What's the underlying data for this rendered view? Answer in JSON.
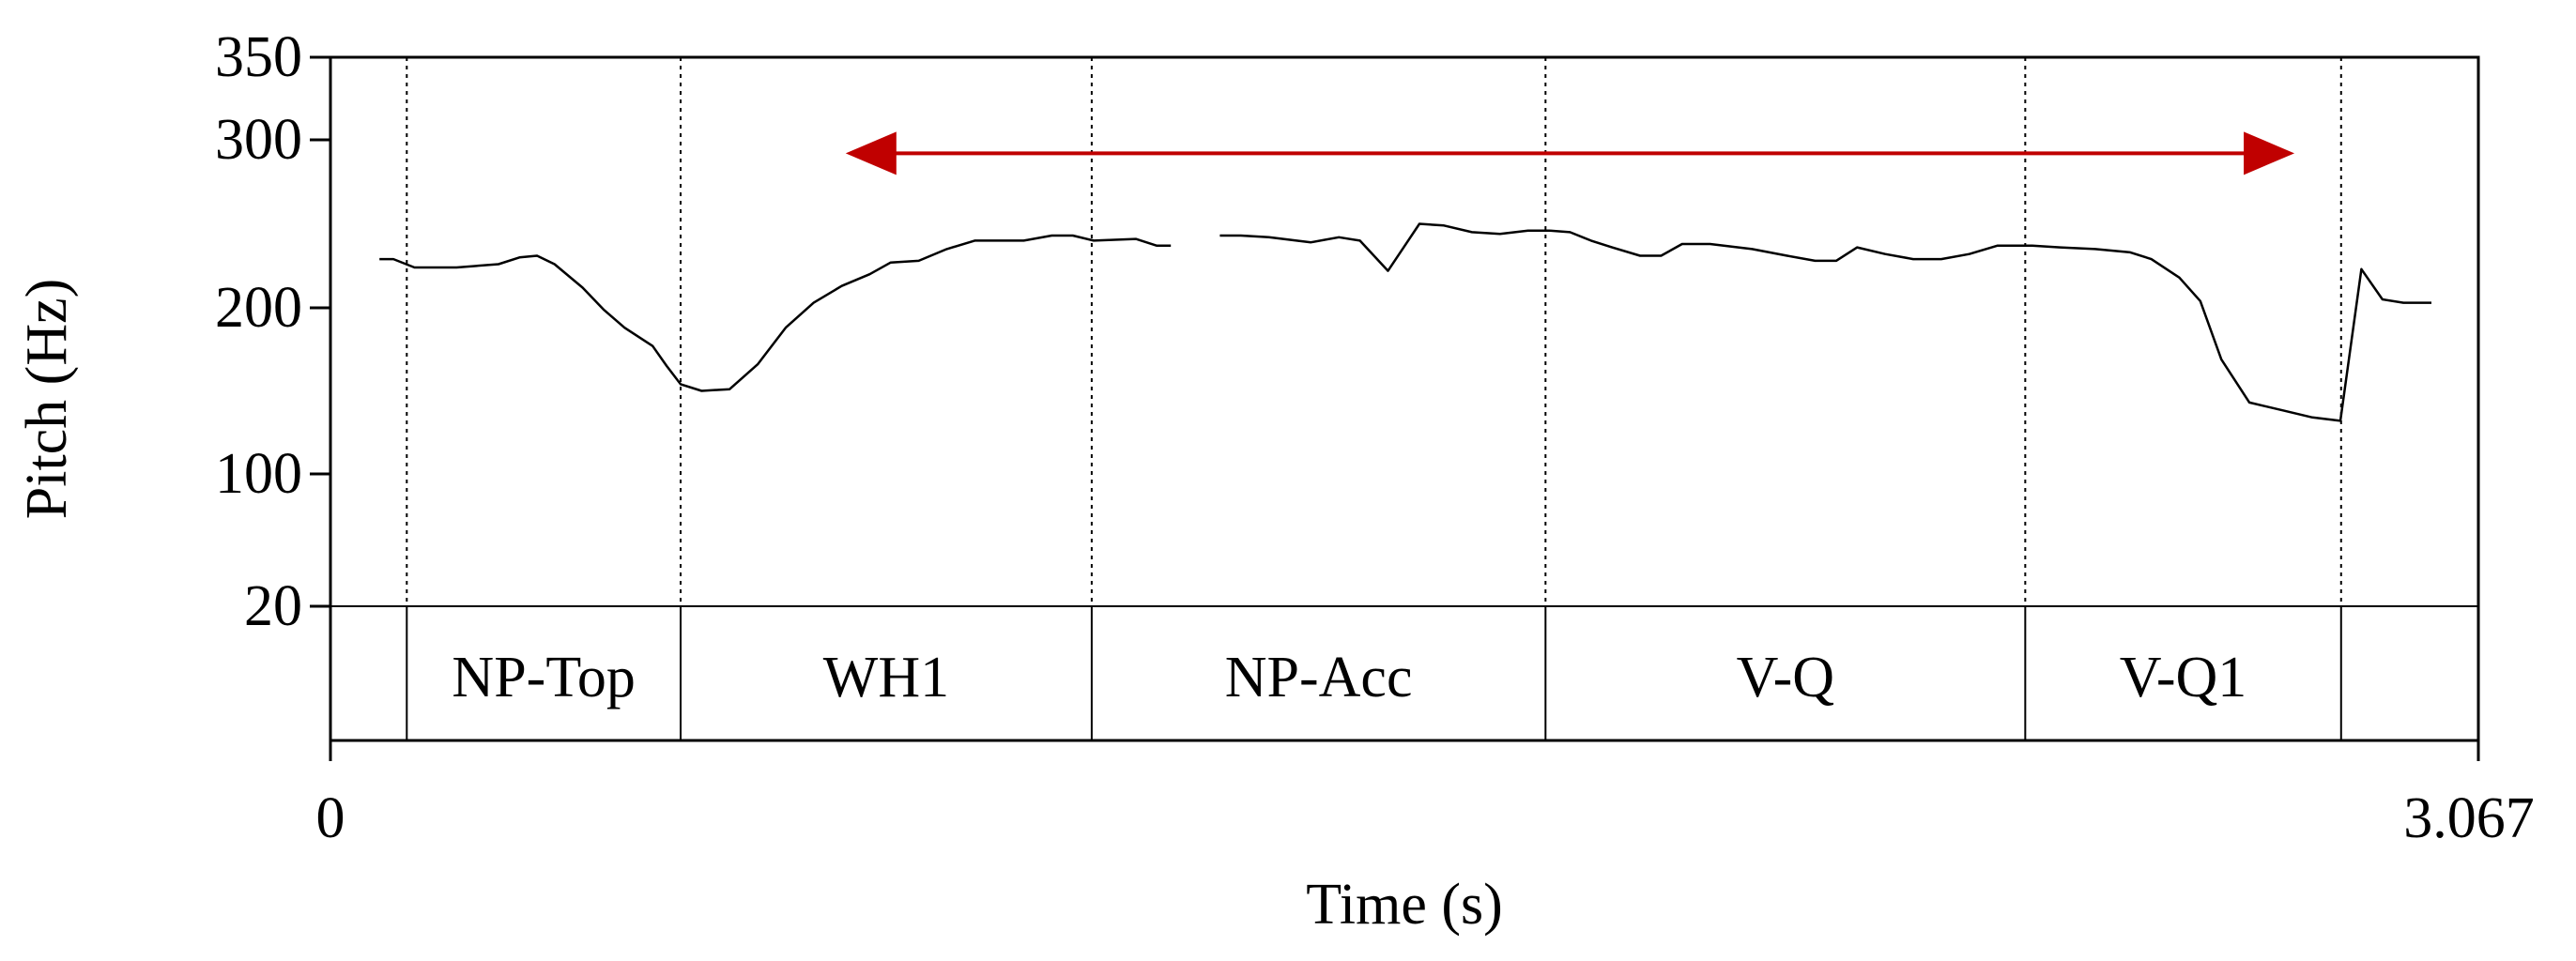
{
  "chart_data": {
    "type": "line",
    "ylabel": "Pitch (Hz)",
    "xlabel": "Time (s)",
    "xlim": [
      0,
      3.067
    ],
    "ylim": [
      20,
      350
    ],
    "x_ticks": [
      "0",
      "3.067"
    ],
    "y_ticks": [
      {
        "value": 350,
        "label": "350"
      },
      {
        "value": 300,
        "label": "300"
      },
      {
        "value": 200,
        "label": "200"
      },
      {
        "value": 100,
        "label": "100"
      },
      {
        "value": 20,
        "label": "20"
      }
    ],
    "boundaries": [
      0.109,
      0.5,
      1.087,
      1.735,
      2.42,
      2.871
    ],
    "tiers": [
      {
        "label": "NP-Top",
        "start": 0.109,
        "end": 0.5
      },
      {
        "label": "WH1",
        "start": 0.5,
        "end": 1.087
      },
      {
        "label": "NP-Acc",
        "start": 1.087,
        "end": 1.735
      },
      {
        "label": "V-Q",
        "start": 1.735,
        "end": 2.42
      },
      {
        "label": "V-Q1",
        "start": 2.42,
        "end": 2.871
      }
    ],
    "annotation": {
      "type": "double-arrow",
      "x_start": 0.8,
      "x_end": 2.74,
      "y": 292,
      "color": "#c00000"
    },
    "series": [
      {
        "color": "#000000",
        "segments": [
          [
            [
              0.07,
              229
            ],
            [
              0.09,
              229
            ],
            [
              0.12,
              224
            ],
            [
              0.18,
              224
            ],
            [
              0.24,
              226
            ],
            [
              0.27,
              230
            ],
            [
              0.295,
              231
            ],
            [
              0.32,
              226
            ],
            [
              0.36,
              212
            ],
            [
              0.39,
              199
            ],
            [
              0.42,
              188
            ],
            [
              0.46,
              177
            ],
            [
              0.48,
              165
            ],
            [
              0.5,
              154
            ],
            [
              0.53,
              150
            ],
            [
              0.57,
              151
            ],
            [
              0.61,
              166
            ],
            [
              0.65,
              188
            ],
            [
              0.69,
              203
            ],
            [
              0.73,
              213
            ],
            [
              0.77,
              220
            ],
            [
              0.8,
              227
            ],
            [
              0.84,
              228
            ],
            [
              0.88,
              235
            ],
            [
              0.92,
              240
            ],
            [
              0.99,
              240
            ],
            [
              1.03,
              243
            ],
            [
              1.06,
              243
            ],
            [
              1.09,
              240
            ],
            [
              1.15,
              241
            ],
            [
              1.18,
              237
            ],
            [
              1.2,
              237
            ]
          ],
          [
            [
              1.27,
              243
            ],
            [
              1.3,
              243
            ],
            [
              1.34,
              242
            ],
            [
              1.4,
              239
            ],
            [
              1.44,
              242
            ],
            [
              1.47,
              240
            ],
            [
              1.51,
              222
            ],
            [
              1.555,
              250
            ],
            [
              1.59,
              249
            ],
            [
              1.63,
              245
            ],
            [
              1.67,
              244
            ],
            [
              1.71,
              246
            ],
            [
              1.74,
              246
            ],
            [
              1.77,
              245
            ],
            [
              1.8,
              240
            ],
            [
              1.83,
              236
            ],
            [
              1.87,
              231
            ],
            [
              1.9,
              231
            ],
            [
              1.93,
              238
            ],
            [
              1.97,
              238
            ],
            [
              2.03,
              235
            ],
            [
              2.08,
              231
            ],
            [
              2.12,
              228
            ],
            [
              2.15,
              228
            ],
            [
              2.18,
              236
            ],
            [
              2.22,
              232
            ],
            [
              2.26,
              229
            ],
            [
              2.3,
              229
            ],
            [
              2.34,
              232
            ],
            [
              2.38,
              237
            ],
            [
              2.43,
              237
            ],
            [
              2.47,
              236
            ],
            [
              2.52,
              235
            ],
            [
              2.57,
              233
            ],
            [
              2.6,
              229
            ],
            [
              2.64,
              218
            ],
            [
              2.67,
              204
            ],
            [
              2.7,
              169
            ],
            [
              2.74,
              143
            ],
            [
              2.79,
              138
            ],
            [
              2.83,
              134
            ],
            [
              2.87,
              132
            ],
            [
              2.9,
              223
            ],
            [
              2.93,
              205
            ],
            [
              2.96,
              203
            ],
            [
              3.0,
              203
            ]
          ]
        ]
      }
    ]
  }
}
